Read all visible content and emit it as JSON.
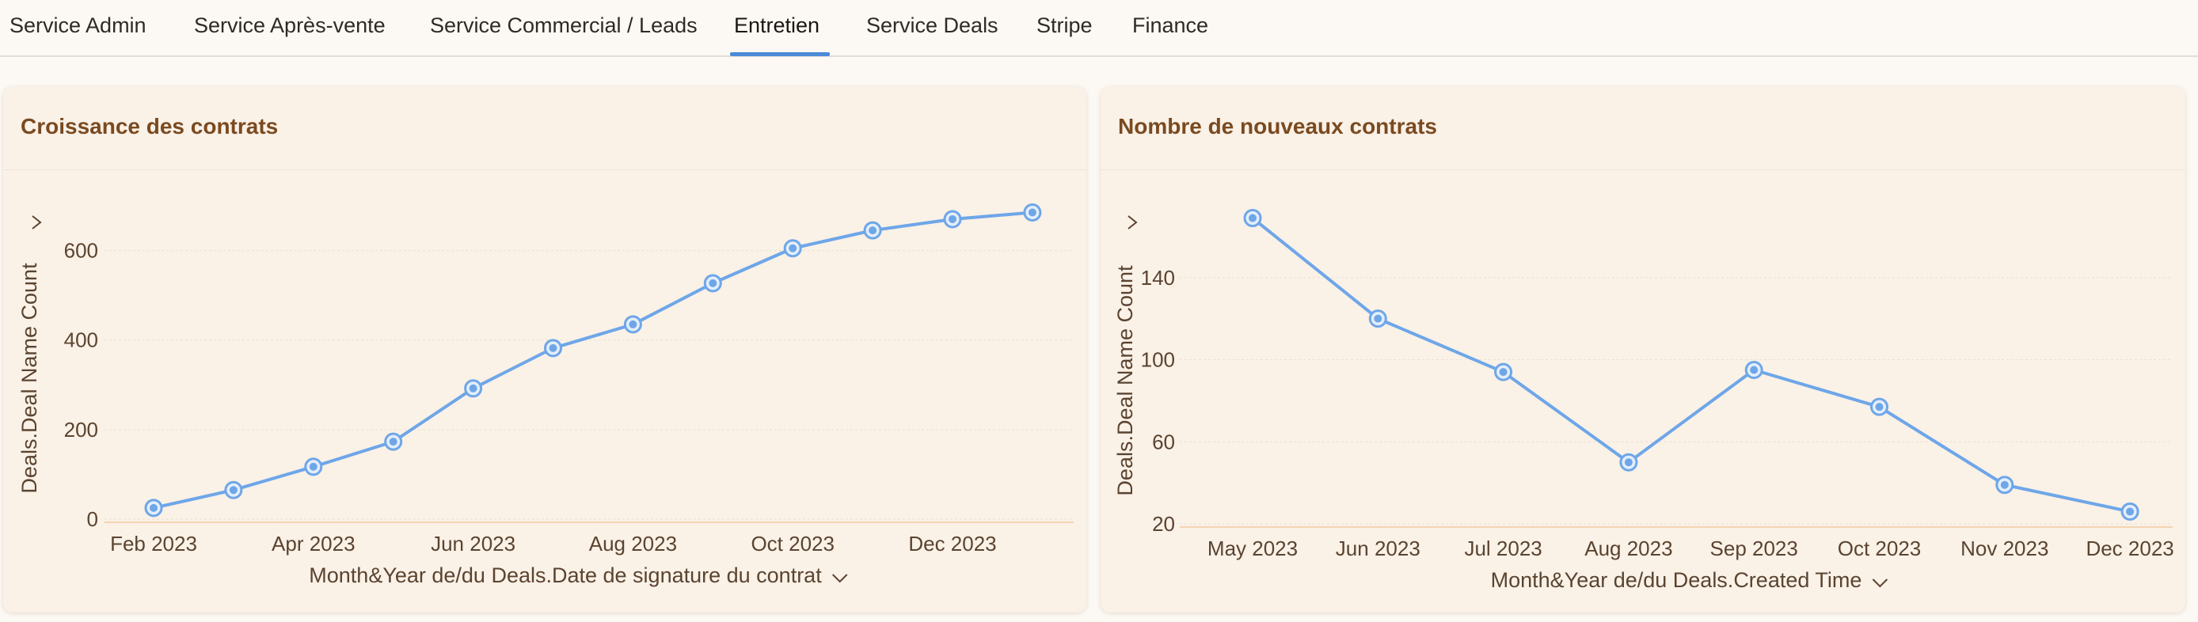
{
  "tabs": [
    {
      "label": "Service Admin",
      "active": false
    },
    {
      "label": "Service Après-vente",
      "active": false
    },
    {
      "label": "Service Commercial / Leads",
      "active": false
    },
    {
      "label": "Entretien",
      "active": true
    },
    {
      "label": "Service Deals",
      "active": false
    },
    {
      "label": "Stripe",
      "active": false
    },
    {
      "label": "Finance",
      "active": false
    }
  ],
  "colors": {
    "accent": "#4a8ad8",
    "line": "#6ea6e8",
    "title": "#7a4a20",
    "card_bg": "#faf1e7"
  },
  "chart_data": [
    {
      "type": "line",
      "title": "Croissance des contrats",
      "xlabel": "Month&Year de/du Deals.Date de signature du contrat",
      "ylabel": "Deals.Deal Name Count",
      "x": [
        "Feb 2023",
        "Mar 2023",
        "Apr 2023",
        "May 2023",
        "Jun 2023",
        "Jul 2023",
        "Aug 2023",
        "Sep 2023",
        "Oct 2023",
        "Nov 2023",
        "Dec 2023",
        "Jan 2024"
      ],
      "x_tick_labels": [
        "Feb 2023",
        "Apr 2023",
        "Jun 2023",
        "Aug 2023",
        "Oct 2023",
        "Dec 2023"
      ],
      "values": [
        25,
        65,
        117,
        173,
        292,
        382,
        435,
        527,
        605,
        645,
        670,
        685
      ],
      "yticks": [
        0,
        200,
        400,
        600
      ],
      "ylim": [
        0,
        700
      ],
      "grid": true,
      "legend": "none"
    },
    {
      "type": "line",
      "title": "Nombre de nouveaux contrats",
      "xlabel": "Month&Year de/du Deals.Created Time",
      "ylabel": "Deals.Deal Name Count",
      "x": [
        "May 2023",
        "Jun 2023",
        "Jul 2023",
        "Aug 2023",
        "Sep 2023",
        "Oct 2023",
        "Nov 2023",
        "Dec 2023"
      ],
      "x_tick_labels": [
        "May 2023",
        "Jun 2023",
        "Jul 2023",
        "Aug 2023",
        "Sep 2023",
        "Oct 2023",
        "Nov 2023",
        "Dec 2023"
      ],
      "values": [
        169,
        120,
        94,
        50,
        95,
        77,
        39,
        26
      ],
      "yticks": [
        20,
        60,
        100,
        140
      ],
      "ylim": [
        20,
        175
      ],
      "grid": true,
      "legend": "none"
    }
  ]
}
